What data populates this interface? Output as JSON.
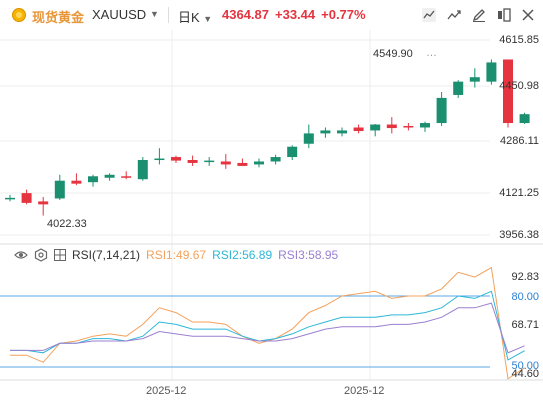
{
  "header": {
    "name": "现货黄金",
    "symbol": "XAUUSD",
    "period": "日K",
    "last": "4364.87",
    "change": "+33.44",
    "change_pct": "+0.77%"
  },
  "colors": {
    "up": "#e5343f",
    "down": "#1a9070",
    "rsi1": "#f4a15b",
    "rsi2": "#2bb7d6",
    "rsi3": "#9b7fd1",
    "level_line": "#5aa9e6",
    "grid": "#eeeeee"
  },
  "icons": [
    "candle-style-icon",
    "compare-icon",
    "draw-tool-icon",
    "layout-icon",
    "close-icon"
  ],
  "chart_data": [
    {
      "type": "candlestick",
      "price_axis_labels": [
        "4615.85",
        "4450.98",
        "4286.11",
        "4121.25",
        "3956.38"
      ],
      "ylim": [
        3956.38,
        4615.85
      ],
      "annotations": {
        "high": "4549.90",
        "low": "4022.33"
      },
      "candles": [
        {
          "o": 4078,
          "h": 4092,
          "l": 4070,
          "c": 4082
        },
        {
          "o": 4098,
          "h": 4110,
          "l": 4060,
          "c": 4065
        },
        {
          "o": 4070,
          "h": 4085,
          "l": 4022,
          "c": 4060
        },
        {
          "o": 4080,
          "h": 4160,
          "l": 4075,
          "c": 4140
        },
        {
          "o": 4140,
          "h": 4165,
          "l": 4125,
          "c": 4130
        },
        {
          "o": 4135,
          "h": 4160,
          "l": 4120,
          "c": 4155
        },
        {
          "o": 4150,
          "h": 4165,
          "l": 4140,
          "c": 4160
        },
        {
          "o": 4155,
          "h": 4172,
          "l": 4145,
          "c": 4150
        },
        {
          "o": 4145,
          "h": 4220,
          "l": 4140,
          "c": 4210
        },
        {
          "o": 4210,
          "h": 4250,
          "l": 4195,
          "c": 4215
        },
        {
          "o": 4220,
          "h": 4225,
          "l": 4200,
          "c": 4208
        },
        {
          "o": 4210,
          "h": 4225,
          "l": 4190,
          "c": 4200
        },
        {
          "o": 4205,
          "h": 4220,
          "l": 4190,
          "c": 4208
        },
        {
          "o": 4205,
          "h": 4230,
          "l": 4180,
          "c": 4195
        },
        {
          "o": 4200,
          "h": 4215,
          "l": 4190,
          "c": 4190
        },
        {
          "o": 4195,
          "h": 4215,
          "l": 4185,
          "c": 4205
        },
        {
          "o": 4205,
          "h": 4228,
          "l": 4195,
          "c": 4220
        },
        {
          "o": 4220,
          "h": 4260,
          "l": 4210,
          "c": 4255
        },
        {
          "o": 4265,
          "h": 4330,
          "l": 4250,
          "c": 4300
        },
        {
          "o": 4300,
          "h": 4320,
          "l": 4285,
          "c": 4310
        },
        {
          "o": 4300,
          "h": 4320,
          "l": 4290,
          "c": 4310
        },
        {
          "o": 4320,
          "h": 4330,
          "l": 4300,
          "c": 4308
        },
        {
          "o": 4310,
          "h": 4332,
          "l": 4290,
          "c": 4330
        },
        {
          "o": 4330,
          "h": 4355,
          "l": 4300,
          "c": 4318
        },
        {
          "o": 4325,
          "h": 4335,
          "l": 4310,
          "c": 4320
        },
        {
          "o": 4320,
          "h": 4340,
          "l": 4305,
          "c": 4335
        },
        {
          "o": 4335,
          "h": 4440,
          "l": 4325,
          "c": 4420
        },
        {
          "o": 4430,
          "h": 4480,
          "l": 4420,
          "c": 4475
        },
        {
          "o": 4475,
          "h": 4520,
          "l": 4455,
          "c": 4490
        },
        {
          "o": 4475,
          "h": 4550,
          "l": 4465,
          "c": 4540
        },
        {
          "o": 4550,
          "h": 4550,
          "l": 4320,
          "c": 4335
        },
        {
          "o": 4335,
          "h": 4370,
          "l": 4332,
          "c": 4365
        }
      ]
    },
    {
      "type": "line",
      "indicator": "RSI(7,14,21)",
      "axis_labels": [
        "92.83",
        "80.00",
        "68.71",
        "50.00",
        "44.60"
      ],
      "ylim": [
        44.6,
        100
      ],
      "levels": [
        80,
        50
      ],
      "series": [
        {
          "name": "RSI1",
          "current": "49.67",
          "values": [
            55,
            55,
            52,
            60,
            61,
            63,
            64,
            63,
            68,
            75,
            73,
            69,
            69,
            68,
            63,
            60,
            62,
            66,
            73,
            76,
            80,
            81,
            82,
            79,
            80,
            80,
            83,
            90,
            88,
            92,
            45,
            49.67
          ]
        },
        {
          "name": "RSI2",
          "current": "56.89",
          "values": [
            57,
            57,
            56,
            60,
            60,
            62,
            62,
            61,
            63,
            69,
            68,
            66,
            66,
            66,
            63,
            61,
            62,
            64,
            67,
            69,
            71,
            71,
            71,
            72,
            72,
            73,
            75,
            80,
            79,
            82,
            53,
            56.89
          ]
        },
        {
          "name": "RSI3",
          "current": "58.95",
          "values": [
            57,
            57,
            57,
            60,
            60,
            61,
            61,
            61,
            62,
            65,
            64,
            63,
            63,
            63,
            62,
            61,
            61,
            62,
            64,
            66,
            67,
            67,
            67,
            68,
            68,
            69,
            71,
            75,
            75,
            77,
            56,
            58.95
          ]
        }
      ]
    }
  ],
  "x_axis_labels": [
    "2025-12",
    "2025-12"
  ],
  "rsi_header": {
    "label": "RSI(7,14,21)",
    "r1": "RSI1:49.67",
    "r2": "RSI2:56.89",
    "r3": "RSI3:58.95"
  }
}
